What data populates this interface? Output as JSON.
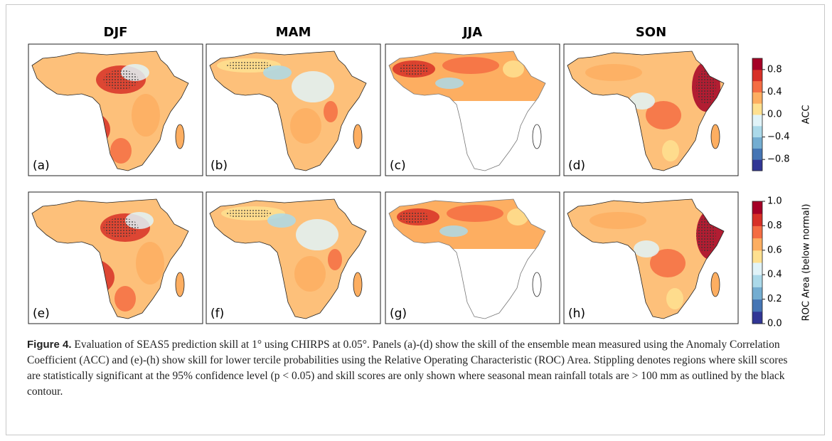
{
  "columns": [
    "DJF",
    "MAM",
    "JJA",
    "SON"
  ],
  "panel_labels": [
    "(a)",
    "(b)",
    "(c)",
    "(d)",
    "(e)",
    "(f)",
    "(g)",
    "(h)"
  ],
  "colorbars": [
    {
      "label": "ACC",
      "lim": [
        -1,
        1
      ],
      "ticks": [
        0.8,
        0.4,
        {
          "value": 0,
          "label": "0.0"
        },
        {
          "value": -0.4,
          "label": "−0.4"
        },
        {
          "value": -0.8,
          "label": "−0.8"
        }
      ],
      "colors": [
        "#313695",
        "#4575b4",
        "#74add1",
        "#abd9e9",
        "#e0f3f8",
        "#fee090",
        "#fdae61",
        "#f46d43",
        "#d73027",
        "#a50026"
      ]
    },
    {
      "label": "ROC Area (below normal)",
      "lim": [
        0,
        1
      ],
      "ticks": [
        {
          "value": 0,
          "label": "0.0"
        },
        0.2,
        0.4,
        0.6,
        0.8,
        {
          "value": 1,
          "label": "1.0"
        }
      ],
      "colors": [
        "#313695",
        "#4575b4",
        "#74add1",
        "#abd9e9",
        "#e0f3f8",
        "#fee090",
        "#fdae61",
        "#f46d43",
        "#d73027",
        "#a50026"
      ]
    }
  ],
  "caption": {
    "label": "Figure 4.",
    "text": "Evaluation of SEAS5 prediction skill at 1° using CHIRPS at 0.05°. Panels (a)-(d) show the skill of the ensemble mean measured using the Anomaly Correlation Coefficient (ACC) and (e)-(h) show skill for lower tercile probabilities using the Relative Operating Characteristic (ROC) Area. Stippling denotes regions where skill scores are statistically significant at the 95% confidence level (p < 0.05) and skill scores are only shown where seasonal mean rainfall totals are > 100 mm as outlined by the black contour."
  }
}
